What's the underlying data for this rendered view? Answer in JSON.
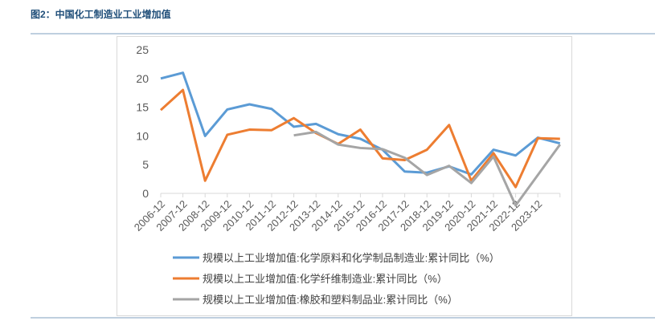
{
  "chart_data": {
    "type": "line",
    "title": "图2：中国化工制造业工业增加值",
    "categories": [
      "2006-12",
      "2007-12",
      "2008-12",
      "2009-12",
      "2010-12",
      "2011-12",
      "2012-12",
      "2013-12",
      "2014-12",
      "2015-12",
      "2016-12",
      "2017-12",
      "2018-12",
      "2019-12",
      "2020-12",
      "2021-12",
      "2022-12",
      "2023-12",
      null
    ],
    "series": [
      {
        "name": "规模以上工业增加值:化学原料和化学制品制造业:累计同比（%）",
        "color": "#5b9bd5",
        "values": [
          20,
          21,
          10,
          14.6,
          15.5,
          14.7,
          11.6,
          12.1,
          10.3,
          9.5,
          7.6,
          3.8,
          3.6,
          4.7,
          3.3,
          7.6,
          6.6,
          9.7,
          8.7
        ]
      },
      {
        "name": "规模以上工业增加值:化学纤维制造业:累计同比（%）",
        "color": "#ed7d31",
        "values": [
          14.5,
          18,
          2.2,
          10.2,
          11.1,
          11.0,
          13.1,
          10.5,
          8.6,
          11.1,
          6.1,
          5.8,
          7.6,
          11.9,
          2.2,
          7.0,
          1.1,
          9.6,
          9.5
        ]
      },
      {
        "name": "规模以上工业增加值:橡胶和塑料制品业:累计同比（%）",
        "color": "#a5a5a5",
        "values": [
          null,
          null,
          null,
          null,
          null,
          null,
          10.1,
          10.7,
          8.5,
          7.9,
          7.7,
          6.2,
          3.2,
          4.8,
          1.8,
          6.4,
          -2.1,
          3.2,
          8.5
        ]
      }
    ],
    "ylim": [
      0,
      25
    ],
    "yticks": [
      0,
      5,
      10,
      15,
      20,
      25
    ],
    "grid": false
  }
}
